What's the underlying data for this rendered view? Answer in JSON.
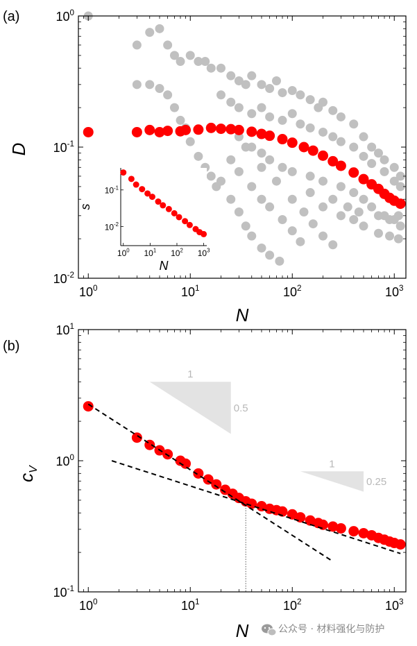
{
  "colors": {
    "red": "#ff0000",
    "gray": "#c0c0c0",
    "triangle": "#e3e3e3",
    "triangle_text": "#b8b8b8",
    "dash": "#000000"
  },
  "watermark": {
    "icon": "wechat-icon",
    "text": "公众号 · 材料强化与防护"
  },
  "chart_data": [
    {
      "type": "scatter",
      "panel_label": "(a)",
      "ylabel": "D",
      "xlabel": "N",
      "xscale": "log",
      "yscale": "log",
      "xlim": [
        0.8,
        1300
      ],
      "ylim": [
        0.01,
        1
      ],
      "xticks": [
        {
          "value": 1,
          "base": "10",
          "exp": "0"
        },
        {
          "value": 10,
          "base": "10",
          "exp": "1"
        },
        {
          "value": 100,
          "base": "10",
          "exp": "2"
        },
        {
          "value": 1000,
          "base": "10",
          "exp": "3"
        }
      ],
      "yticks": [
        {
          "value": 0.01,
          "base": "10",
          "exp": "-2"
        },
        {
          "value": 0.1,
          "base": "10",
          "exp": "-1"
        },
        {
          "value": 1,
          "base": "10",
          "exp": "0"
        }
      ],
      "series": [
        {
          "name": "mean D (red)",
          "color": "red",
          "points": [
            [
              1,
              0.13
            ],
            [
              3,
              0.13
            ],
            [
              4,
              0.135
            ],
            [
              5,
              0.13
            ],
            [
              6,
              0.133
            ],
            [
              8,
              0.132
            ],
            [
              9,
              0.135
            ],
            [
              12,
              0.136
            ],
            [
              16,
              0.14
            ],
            [
              20,
              0.138
            ],
            [
              25,
              0.137
            ],
            [
              30,
              0.135
            ],
            [
              40,
              0.131
            ],
            [
              50,
              0.126
            ],
            [
              60,
              0.122
            ],
            [
              80,
              0.115
            ],
            [
              100,
              0.108
            ],
            [
              130,
              0.1
            ],
            [
              160,
              0.094
            ],
            [
              200,
              0.086
            ],
            [
              250,
              0.078
            ],
            [
              300,
              0.072
            ],
            [
              400,
              0.064
            ],
            [
              500,
              0.057
            ],
            [
              600,
              0.052
            ],
            [
              700,
              0.048
            ],
            [
              800,
              0.044
            ],
            [
              900,
              0.041
            ],
            [
              1000,
              0.039
            ],
            [
              1150,
              0.037
            ]
          ]
        },
        {
          "name": "individual D (gray)",
          "color": "gray",
          "points": [
            [
              1,
              1.0
            ],
            [
              3,
              0.6
            ],
            [
              4,
              0.75
            ],
            [
              5,
              0.8
            ],
            [
              6,
              0.6
            ],
            [
              7,
              0.5
            ],
            [
              8,
              0.45
            ],
            [
              10,
              0.5
            ],
            [
              12,
              0.45
            ],
            [
              14,
              0.45
            ],
            [
              16,
              0.4
            ],
            [
              3,
              0.3
            ],
            [
              4,
              0.3
            ],
            [
              5,
              0.28
            ],
            [
              6,
              0.25
            ],
            [
              7,
              0.2
            ],
            [
              8,
              0.16
            ],
            [
              9,
              0.14
            ],
            [
              10,
              0.11
            ],
            [
              12,
              0.085
            ],
            [
              14,
              0.07
            ],
            [
              16,
              0.06
            ],
            [
              18,
              0.05
            ],
            [
              20,
              0.055
            ],
            [
              25,
              0.04
            ],
            [
              30,
              0.032
            ],
            [
              35,
              0.025
            ],
            [
              40,
              0.021
            ],
            [
              50,
              0.017
            ],
            [
              60,
              0.015
            ],
            [
              75,
              0.0135
            ],
            [
              25,
              0.08
            ],
            [
              30,
              0.065
            ],
            [
              40,
              0.05
            ],
            [
              50,
              0.04
            ],
            [
              60,
              0.035
            ],
            [
              80,
              0.028
            ],
            [
              100,
              0.023
            ],
            [
              120,
              0.019
            ],
            [
              35,
              0.1
            ],
            [
              50,
              0.07
            ],
            [
              70,
              0.055
            ],
            [
              100,
              0.04
            ],
            [
              130,
              0.032
            ],
            [
              160,
              0.026
            ],
            [
              200,
              0.021
            ],
            [
              250,
              0.018
            ],
            [
              20,
              0.4
            ],
            [
              25,
              0.35
            ],
            [
              30,
              0.32
            ],
            [
              35,
              0.3
            ],
            [
              40,
              0.35
            ],
            [
              50,
              0.3
            ],
            [
              60,
              0.28
            ],
            [
              70,
              0.32
            ],
            [
              80,
              0.26
            ],
            [
              100,
              0.27
            ],
            [
              120,
              0.25
            ],
            [
              150,
              0.23
            ],
            [
              180,
              0.2
            ],
            [
              200,
              0.22
            ],
            [
              250,
              0.19
            ],
            [
              300,
              0.17
            ],
            [
              400,
              0.15
            ],
            [
              500,
              0.12
            ],
            [
              600,
              0.1
            ],
            [
              700,
              0.09
            ],
            [
              800,
              0.08
            ],
            [
              1000,
              0.07
            ],
            [
              1150,
              0.06
            ],
            [
              20,
              0.25
            ],
            [
              25,
              0.22
            ],
            [
              30,
              0.2
            ],
            [
              40,
              0.18
            ],
            [
              50,
              0.2
            ],
            [
              60,
              0.17
            ],
            [
              80,
              0.16
            ],
            [
              100,
              0.18
            ],
            [
              120,
              0.15
            ],
            [
              150,
              0.14
            ],
            [
              200,
              0.13
            ],
            [
              250,
              0.12
            ],
            [
              300,
              0.11
            ],
            [
              400,
              0.1
            ],
            [
              500,
              0.085
            ],
            [
              600,
              0.075
            ],
            [
              800,
              0.065
            ],
            [
              1000,
              0.055
            ],
            [
              1150,
              0.05
            ],
            [
              30,
              0.12
            ],
            [
              40,
              0.1
            ],
            [
              50,
              0.09
            ],
            [
              60,
              0.08
            ],
            [
              80,
              0.07
            ],
            [
              100,
              0.065
            ],
            [
              150,
              0.06
            ],
            [
              200,
              0.055
            ],
            [
              300,
              0.05
            ],
            [
              400,
              0.045
            ],
            [
              500,
              0.04
            ],
            [
              600,
              0.035
            ],
            [
              800,
              0.03
            ],
            [
              1000,
              0.028
            ],
            [
              1150,
              0.025
            ],
            [
              200,
              0.035
            ],
            [
              300,
              0.03
            ],
            [
              400,
              0.028
            ],
            [
              500,
              0.025
            ],
            [
              700,
              0.022
            ],
            [
              900,
              0.021
            ],
            [
              1100,
              0.02
            ],
            [
              150,
              0.045
            ],
            [
              250,
              0.04
            ],
            [
              350,
              0.035
            ],
            [
              450,
              0.032
            ],
            [
              700,
              0.03
            ],
            [
              900,
              0.028
            ],
            [
              1100,
              0.03
            ]
          ]
        }
      ],
      "inset": {
        "ylabel": "s",
        "xlabel": "N",
        "xlim": [
          0.8,
          1300
        ],
        "ylim": [
          0.003,
          0.4
        ],
        "xticks": [
          {
            "value": 1,
            "base": "10",
            "exp": "0"
          },
          {
            "value": 10,
            "base": "10",
            "exp": "1"
          },
          {
            "value": 100,
            "base": "10",
            "exp": "2"
          },
          {
            "value": 1000,
            "base": "10",
            "exp": "3"
          }
        ],
        "yticks": [
          {
            "value": 0.01,
            "base": "10",
            "exp": "-2"
          },
          {
            "value": 0.1,
            "base": "10",
            "exp": "-1"
          }
        ],
        "points": [
          [
            1,
            0.3
          ],
          [
            2,
            0.2
          ],
          [
            3,
            0.14
          ],
          [
            5,
            0.105
          ],
          [
            8,
            0.08
          ],
          [
            12,
            0.065
          ],
          [
            20,
            0.048
          ],
          [
            30,
            0.038
          ],
          [
            50,
            0.03
          ],
          [
            80,
            0.023
          ],
          [
            120,
            0.018
          ],
          [
            200,
            0.014
          ],
          [
            300,
            0.011
          ],
          [
            500,
            0.0085
          ],
          [
            700,
            0.007
          ],
          [
            1000,
            0.0062
          ]
        ]
      }
    },
    {
      "type": "scatter",
      "panel_label": "(b)",
      "ylabel": "c",
      "ylabel_sub": "V",
      "xlabel": "N",
      "xscale": "log",
      "yscale": "log",
      "xlim": [
        0.8,
        1300
      ],
      "ylim": [
        0.1,
        10
      ],
      "xticks": [
        {
          "value": 1,
          "base": "10",
          "exp": "0"
        },
        {
          "value": 10,
          "base": "10",
          "exp": "1"
        },
        {
          "value": 100,
          "base": "10",
          "exp": "2"
        },
        {
          "value": 1000,
          "base": "10",
          "exp": "3"
        }
      ],
      "yticks": [
        {
          "value": 0.1,
          "base": "10",
          "exp": "-1"
        },
        {
          "value": 1,
          "base": "10",
          "exp": "0"
        },
        {
          "value": 10,
          "base": "10",
          "exp": "1"
        }
      ],
      "points": [
        [
          1,
          2.6
        ],
        [
          3,
          1.5
        ],
        [
          4,
          1.32
        ],
        [
          5,
          1.2
        ],
        [
          6,
          1.12
        ],
        [
          8,
          1.0
        ],
        [
          9,
          0.95
        ],
        [
          12,
          0.8
        ],
        [
          15,
          0.72
        ],
        [
          18,
          0.66
        ],
        [
          22,
          0.6
        ],
        [
          26,
          0.56
        ],
        [
          30,
          0.52
        ],
        [
          35,
          0.49
        ],
        [
          40,
          0.47
        ],
        [
          50,
          0.45
        ],
        [
          60,
          0.43
        ],
        [
          70,
          0.42
        ],
        [
          80,
          0.41
        ],
        [
          100,
          0.39
        ],
        [
          120,
          0.37
        ],
        [
          150,
          0.35
        ],
        [
          180,
          0.335
        ],
        [
          200,
          0.325
        ],
        [
          250,
          0.315
        ],
        [
          300,
          0.305
        ],
        [
          400,
          0.29
        ],
        [
          500,
          0.28
        ],
        [
          600,
          0.27
        ],
        [
          700,
          0.258
        ],
        [
          800,
          0.25
        ],
        [
          900,
          0.242
        ],
        [
          1000,
          0.236
        ],
        [
          1150,
          0.23
        ]
      ],
      "fits": [
        {
          "slope": -0.5,
          "from": [
            1,
            2.7
          ],
          "to_x": 240
        },
        {
          "slope": -0.25,
          "from": [
            1.7,
            1.0
          ],
          "to_x": 1150
        }
      ],
      "crossover_x": 35,
      "slope_triangles": [
        {
          "run_label": "1",
          "rise_label": "0.5",
          "x1": 4,
          "x2": 25,
          "y_top": 4.0,
          "slope": -0.5
        },
        {
          "run_label": "1",
          "rise_label": "0.25",
          "x1": 120,
          "x2": 500,
          "y_top": 0.83,
          "slope": -0.25
        }
      ]
    }
  ]
}
